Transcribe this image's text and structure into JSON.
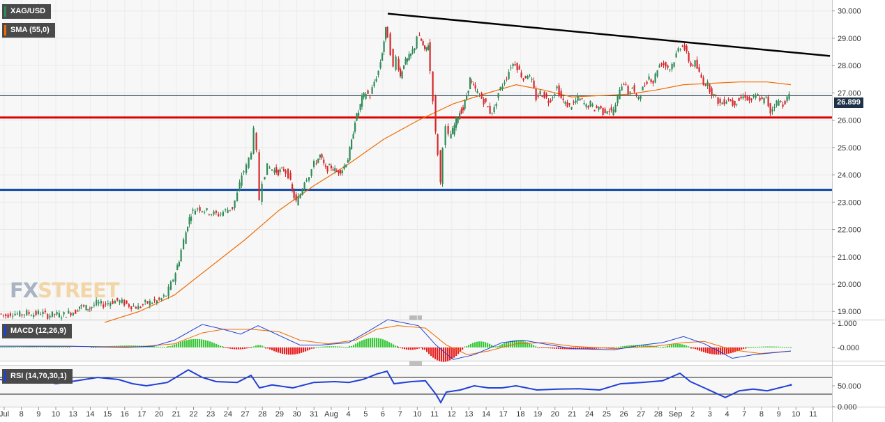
{
  "legends": {
    "symbol": "XAG/USD",
    "sma": "SMA (55,0)",
    "macd": "MACD (12,26,9)",
    "rsi": "RSI (14,70,30,1)"
  },
  "logo": {
    "part1": "FX",
    "part2": "STREET"
  },
  "price_badge": "26.899",
  "colors": {
    "up": "#2e8b57",
    "down": "#d62728",
    "sma": "#ef6c00",
    "trendline": "#000000",
    "support_red": "#e00000",
    "support_blue": "#0d47a1",
    "macd_line": "#1f3fd6",
    "signal_line": "#ef6c00",
    "hist_pos": "#39c739",
    "hist_neg": "#e81f1f",
    "rsi_line": "#1f3fd6"
  },
  "chart_data": [
    {
      "type": "candlestick",
      "title": "XAG/USD",
      "y_ticks": [
        "30.000",
        "29.000",
        "28.000",
        "27.000",
        "26.000",
        "25.000",
        "24.000",
        "23.000",
        "22.000",
        "21.000",
        "20.000",
        "19.000"
      ],
      "ylim": [
        18.7,
        30.4
      ],
      "x_ticks": [
        "Jul",
        "8",
        "9",
        "10",
        "13",
        "14",
        "15",
        "16",
        "17",
        "20",
        "21",
        "22",
        "23",
        "24",
        "27",
        "28",
        "29",
        "30",
        "31",
        "Aug",
        "4",
        "5",
        "6",
        "7",
        "10",
        "11",
        "12",
        "13",
        "14",
        "17",
        "18",
        "19",
        "20",
        "21",
        "24",
        "25",
        "26",
        "27",
        "28",
        "Sep",
        "2",
        "3",
        "4",
        "7",
        "8",
        "9",
        "10",
        "11"
      ],
      "close_path": [
        [
          0,
          18.92
        ],
        [
          10,
          18.85
        ],
        [
          20,
          18.95
        ],
        [
          30,
          18.88
        ],
        [
          40,
          18.95
        ],
        [
          50,
          18.9
        ],
        [
          60,
          18.96
        ],
        [
          70,
          18.85
        ],
        [
          80,
          18.9
        ],
        [
          90,
          18.85
        ],
        [
          100,
          18.95
        ],
        [
          110,
          19.0
        ],
        [
          115,
          19.2
        ],
        [
          122,
          19.15
        ],
        [
          130,
          19.12
        ],
        [
          140,
          19.3
        ],
        [
          150,
          19.25
        ],
        [
          160,
          19.35
        ],
        [
          170,
          19.4
        ],
        [
          180,
          19.3
        ],
        [
          190,
          19.2
        ],
        [
          200,
          19.15
        ],
        [
          210,
          19.3
        ],
        [
          220,
          19.35
        ],
        [
          230,
          19.4
        ],
        [
          240,
          19.6
        ],
        [
          250,
          20.2
        ],
        [
          258,
          20.9
        ],
        [
          265,
          21.6
        ],
        [
          270,
          22.2
        ],
        [
          275,
          22.6
        ],
        [
          285,
          22.8
        ],
        [
          295,
          22.7
        ],
        [
          305,
          22.6
        ],
        [
          315,
          22.55
        ],
        [
          325,
          22.7
        ],
        [
          335,
          22.8
        ],
        [
          342,
          23.3
        ],
        [
          348,
          24.0
        ],
        [
          355,
          24.3
        ],
        [
          362,
          24.9
        ],
        [
          366,
          25.6
        ],
        [
          370,
          24.8
        ],
        [
          374,
          23.1
        ],
        [
          378,
          23.8
        ],
        [
          385,
          24.3
        ],
        [
          392,
          24.2
        ],
        [
          400,
          24.1
        ],
        [
          408,
          24.2
        ],
        [
          415,
          24.0
        ],
        [
          420,
          23.4
        ],
        [
          426,
          23.0
        ],
        [
          432,
          23.3
        ],
        [
          438,
          23.8
        ],
        [
          445,
          24.0
        ],
        [
          452,
          24.4
        ],
        [
          460,
          24.7
        ],
        [
          468,
          24.2
        ],
        [
          476,
          24.3
        ],
        [
          484,
          24.1
        ],
        [
          492,
          24.2
        ],
        [
          500,
          24.6
        ],
        [
          505,
          25.2
        ],
        [
          510,
          26.0
        ],
        [
          515,
          26.3
        ],
        [
          520,
          26.8
        ],
        [
          526,
          27.0
        ],
        [
          532,
          26.9
        ],
        [
          538,
          27.4
        ],
        [
          544,
          27.8
        ],
        [
          549,
          28.5
        ],
        [
          554,
          29.3
        ],
        [
          558,
          29.1
        ],
        [
          562,
          28.5
        ],
        [
          566,
          27.9
        ],
        [
          570,
          28.3
        ],
        [
          575,
          27.6
        ],
        [
          580,
          28.1
        ],
        [
          585,
          28.2
        ],
        [
          590,
          28.4
        ],
        [
          596,
          28.7
        ],
        [
          600,
          29.1
        ],
        [
          605,
          28.9
        ],
        [
          610,
          28.5
        ],
        [
          615,
          28.8
        ],
        [
          619,
          27.8
        ],
        [
          623,
          26.8
        ],
        [
          626,
          25.5
        ],
        [
          630,
          24.8
        ],
        [
          633,
          23.7
        ],
        [
          637,
          25.1
        ],
        [
          641,
          25.7
        ],
        [
          645,
          25.4
        ],
        [
          650,
          25.6
        ],
        [
          655,
          26.0
        ],
        [
          660,
          26.3
        ],
        [
          665,
          26.4
        ],
        [
          670,
          26.9
        ],
        [
          675,
          27.5
        ],
        [
          680,
          27.2
        ],
        [
          686,
          27.0
        ],
        [
          692,
          26.8
        ],
        [
          698,
          26.6
        ],
        [
          704,
          26.3
        ],
        [
          710,
          26.4
        ],
        [
          716,
          27.0
        ],
        [
          722,
          27.3
        ],
        [
          728,
          27.6
        ],
        [
          734,
          28.0
        ],
        [
          740,
          28.1
        ],
        [
          746,
          27.8
        ],
        [
          752,
          27.5
        ],
        [
          758,
          27.7
        ],
        [
          764,
          27.4
        ],
        [
          770,
          26.8
        ],
        [
          776,
          27.0
        ],
        [
          782,
          26.9
        ],
        [
          788,
          26.7
        ],
        [
          794,
          26.9
        ],
        [
          800,
          27.2
        ],
        [
          806,
          26.8
        ],
        [
          812,
          26.6
        ],
        [
          818,
          26.5
        ],
        [
          824,
          26.6
        ],
        [
          830,
          26.8
        ],
        [
          836,
          26.7
        ],
        [
          842,
          26.5
        ],
        [
          848,
          26.6
        ],
        [
          854,
          26.4
        ],
        [
          860,
          26.5
        ],
        [
          866,
          26.3
        ],
        [
          872,
          26.4
        ],
        [
          878,
          26.3
        ],
        [
          884,
          26.5
        ],
        [
          890,
          27.2
        ],
        [
          896,
          27.4
        ],
        [
          902,
          27.0
        ],
        [
          908,
          27.2
        ],
        [
          914,
          26.8
        ],
        [
          920,
          27.0
        ],
        [
          926,
          27.3
        ],
        [
          932,
          27.6
        ],
        [
          938,
          27.4
        ],
        [
          944,
          27.9
        ],
        [
          950,
          28.1
        ],
        [
          956,
          28.0
        ],
        [
          962,
          27.9
        ],
        [
          968,
          28.2
        ],
        [
          974,
          28.6
        ],
        [
          980,
          28.8
        ],
        [
          986,
          28.4
        ],
        [
          992,
          28.0
        ],
        [
          998,
          28.1
        ],
        [
          1004,
          27.7
        ],
        [
          1010,
          27.4
        ],
        [
          1016,
          27.3
        ],
        [
          1022,
          27.0
        ],
        [
          1028,
          26.8
        ],
        [
          1034,
          26.6
        ],
        [
          1040,
          26.7
        ],
        [
          1046,
          26.8
        ],
        [
          1052,
          26.6
        ],
        [
          1058,
          26.7
        ],
        [
          1064,
          26.8
        ],
        [
          1070,
          26.9
        ],
        [
          1076,
          26.7
        ],
        [
          1082,
          26.8
        ],
        [
          1088,
          26.9
        ],
        [
          1094,
          26.7
        ],
        [
          1100,
          26.8
        ],
        [
          1106,
          26.3
        ],
        [
          1112,
          26.6
        ],
        [
          1118,
          26.7
        ],
        [
          1124,
          26.6
        ],
        [
          1130,
          26.8
        ],
        [
          1134,
          26.9
        ]
      ],
      "sma_55": [
        [
          150,
          18.6
        ],
        [
          200,
          19.0
        ],
        [
          250,
          19.6
        ],
        [
          300,
          20.6
        ],
        [
          350,
          21.6
        ],
        [
          400,
          22.7
        ],
        [
          450,
          23.6
        ],
        [
          500,
          24.4
        ],
        [
          550,
          25.3
        ],
        [
          600,
          26.0
        ],
        [
          650,
          26.6
        ],
        [
          700,
          27.0
        ],
        [
          740,
          27.3
        ],
        [
          780,
          27.1
        ],
        [
          820,
          26.85
        ],
        [
          860,
          26.9
        ],
        [
          900,
          26.95
        ],
        [
          940,
          27.1
        ],
        [
          980,
          27.3
        ],
        [
          1020,
          27.35
        ],
        [
          1060,
          27.4
        ],
        [
          1100,
          27.4
        ],
        [
          1134,
          27.3
        ]
      ],
      "trendline": [
        [
          556,
          29.9
        ],
        [
          1190,
          28.35
        ]
      ],
      "support_levels": [
        26.1,
        23.45
      ],
      "last_price": 26.899
    },
    {
      "type": "line",
      "title": "MACD (12,26,9)",
      "y_ticks": [
        "1.000",
        "-0.000"
      ],
      "ylim": [
        -0.55,
        1.15
      ],
      "macd_path": [
        [
          0,
          0.05
        ],
        [
          100,
          0.05
        ],
        [
          180,
          0.0
        ],
        [
          220,
          0.05
        ],
        [
          250,
          0.3
        ],
        [
          290,
          0.95
        ],
        [
          320,
          0.75
        ],
        [
          345,
          0.55
        ],
        [
          370,
          0.9
        ],
        [
          400,
          0.5
        ],
        [
          430,
          0.1
        ],
        [
          460,
          0.1
        ],
        [
          500,
          0.2
        ],
        [
          530,
          0.7
        ],
        [
          556,
          1.15
        ],
        [
          600,
          0.9
        ],
        [
          625,
          0.1
        ],
        [
          650,
          -0.5
        ],
        [
          680,
          -0.3
        ],
        [
          720,
          0.2
        ],
        [
          750,
          0.3
        ],
        [
          780,
          0.15
        ],
        [
          820,
          -0.05
        ],
        [
          880,
          -0.1
        ],
        [
          920,
          0.1
        ],
        [
          950,
          0.2
        ],
        [
          980,
          0.45
        ],
        [
          1010,
          0.15
        ],
        [
          1050,
          -0.45
        ],
        [
          1080,
          -0.3
        ],
        [
          1134,
          -0.15
        ]
      ],
      "signal_path": [
        [
          0,
          0.05
        ],
        [
          100,
          0.04
        ],
        [
          200,
          0.03
        ],
        [
          250,
          0.15
        ],
        [
          290,
          0.6
        ],
        [
          320,
          0.75
        ],
        [
          360,
          0.75
        ],
        [
          400,
          0.65
        ],
        [
          430,
          0.3
        ],
        [
          470,
          0.15
        ],
        [
          510,
          0.3
        ],
        [
          540,
          0.75
        ],
        [
          570,
          0.9
        ],
        [
          610,
          0.8
        ],
        [
          640,
          0.1
        ],
        [
          670,
          -0.3
        ],
        [
          700,
          -0.15
        ],
        [
          740,
          0.15
        ],
        [
          780,
          0.2
        ],
        [
          820,
          0.05
        ],
        [
          880,
          -0.05
        ],
        [
          940,
          0.05
        ],
        [
          980,
          0.2
        ],
        [
          1010,
          0.25
        ],
        [
          1050,
          -0.1
        ],
        [
          1090,
          -0.25
        ],
        [
          1134,
          -0.15
        ]
      ],
      "histogram_segments": [
        [
          0,
          100,
          0.04
        ],
        [
          130,
          240,
          0.08
        ],
        [
          240,
          320,
          0.35
        ],
        [
          320,
          360,
          -0.08
        ],
        [
          360,
          380,
          0.1
        ],
        [
          380,
          450,
          -0.3
        ],
        [
          450,
          500,
          0.05
        ],
        [
          500,
          570,
          0.4
        ],
        [
          570,
          605,
          -0.1
        ],
        [
          605,
          665,
          -0.6
        ],
        [
          665,
          710,
          0.25
        ],
        [
          710,
          770,
          0.3
        ],
        [
          770,
          880,
          -0.08
        ],
        [
          880,
          950,
          0.1
        ],
        [
          950,
          990,
          0.15
        ],
        [
          990,
          1070,
          -0.3
        ],
        [
          1070,
          1134,
          0.04
        ]
      ]
    },
    {
      "type": "line",
      "title": "RSI (14,70,30,1)",
      "y_ticks": [
        "50.000",
        "0.000"
      ],
      "ylim": [
        0,
        100
      ],
      "levels": [
        70,
        30
      ],
      "rsi_path": [
        [
          0,
          65
        ],
        [
          20,
          60
        ],
        [
          50,
          68
        ],
        [
          80,
          55
        ],
        [
          110,
          62
        ],
        [
          140,
          70
        ],
        [
          170,
          65
        ],
        [
          190,
          55
        ],
        [
          210,
          50
        ],
        [
          240,
          58
        ],
        [
          270,
          88
        ],
        [
          290,
          70
        ],
        [
          310,
          60
        ],
        [
          340,
          58
        ],
        [
          360,
          75
        ],
        [
          372,
          45
        ],
        [
          390,
          52
        ],
        [
          420,
          45
        ],
        [
          450,
          58
        ],
        [
          480,
          60
        ],
        [
          500,
          58
        ],
        [
          520,
          65
        ],
        [
          540,
          78
        ],
        [
          555,
          85
        ],
        [
          565,
          55
        ],
        [
          590,
          60
        ],
        [
          610,
          62
        ],
        [
          625,
          30
        ],
        [
          632,
          10
        ],
        [
          640,
          35
        ],
        [
          660,
          40
        ],
        [
          680,
          50
        ],
        [
          700,
          45
        ],
        [
          720,
          45
        ],
        [
          740,
          50
        ],
        [
          770,
          40
        ],
        [
          800,
          42
        ],
        [
          830,
          43
        ],
        [
          860,
          40
        ],
        [
          890,
          55
        ],
        [
          920,
          58
        ],
        [
          950,
          62
        ],
        [
          975,
          80
        ],
        [
          990,
          60
        ],
        [
          1010,
          45
        ],
        [
          1040,
          22
        ],
        [
          1060,
          38
        ],
        [
          1080,
          42
        ],
        [
          1100,
          38
        ],
        [
          1134,
          52
        ]
      ]
    }
  ]
}
